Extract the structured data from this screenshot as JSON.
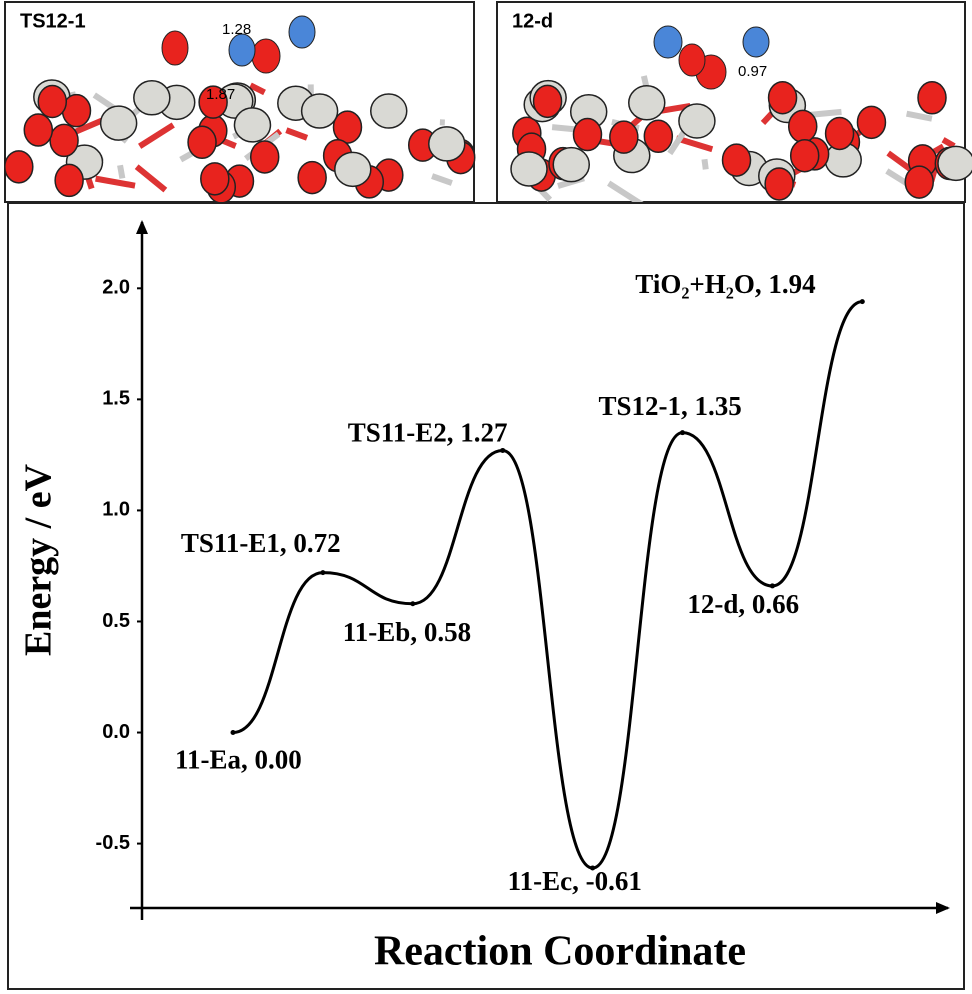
{
  "panels": [
    {
      "title": "TS12-1",
      "distances": [
        "1.28",
        "1.87"
      ]
    },
    {
      "title": "12-d",
      "distances": [
        "0.97"
      ]
    }
  ],
  "chart_data": {
    "type": "line",
    "x_label": "Reaction Coordinate",
    "y_label": "Energy / eV",
    "values": [
      0,
      0.72,
      0.58,
      1.27,
      -0.61,
      1.35,
      0.66,
      1.94
    ],
    "value_labels": [
      "11-Ea, 0.00",
      "TS11-E1, 0.72",
      "11-Eb, 0.58",
      "TS11-E2, 1.27",
      "11-Ec, -0.61",
      "TS12-1, 1.35",
      "12-d, 0.66",
      "TiO₂+H₂O, 1.94"
    ],
    "color": "#000000",
    "ylim": [
      -0.79,
      2.24
    ],
    "yticks": [
      {
        "value": 2,
        "label": "2.0"
      },
      1.5,
      {
        "value": 1,
        "label": "1.0"
      },
      0.5,
      {
        "value": 0,
        "label": "0.0"
      },
      -0.5
    ]
  }
}
